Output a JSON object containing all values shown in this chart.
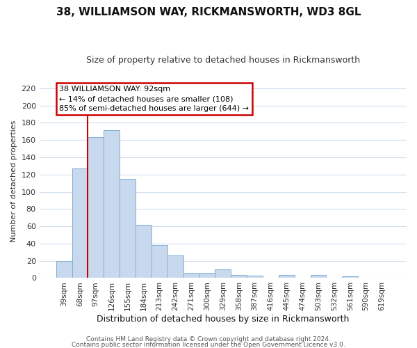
{
  "title": "38, WILLIAMSON WAY, RICKMANSWORTH, WD3 8GL",
  "subtitle": "Size of property relative to detached houses in Rickmansworth",
  "xlabel": "Distribution of detached houses by size in Rickmansworth",
  "ylabel": "Number of detached properties",
  "bar_labels": [
    "39sqm",
    "68sqm",
    "97sqm",
    "126sqm",
    "155sqm",
    "184sqm",
    "213sqm",
    "242sqm",
    "271sqm",
    "300sqm",
    "329sqm",
    "358sqm",
    "387sqm",
    "416sqm",
    "445sqm",
    "474sqm",
    "503sqm",
    "532sqm",
    "561sqm",
    "590sqm",
    "619sqm"
  ],
  "bar_heights": [
    20,
    127,
    163,
    171,
    115,
    62,
    38,
    26,
    6,
    6,
    10,
    4,
    3,
    0,
    4,
    0,
    4,
    0,
    2,
    0,
    0
  ],
  "bar_color": "#c8d9ee",
  "bar_edge_color": "#7eafd4",
  "vline_color": "#cc0000",
  "vline_index": 2,
  "annotation_title": "38 WILLIAMSON WAY: 92sqm",
  "annotation_line1": "← 14% of detached houses are smaller (108)",
  "annotation_line2": "85% of semi-detached houses are larger (644) →",
  "ylim": [
    0,
    225
  ],
  "yticks": [
    0,
    20,
    40,
    60,
    80,
    100,
    120,
    140,
    160,
    180,
    200,
    220
  ],
  "footer1": "Contains HM Land Registry data © Crown copyright and database right 2024.",
  "footer2": "Contains public sector information licensed under the Open Government Licence v3.0.",
  "background_color": "#ffffff",
  "grid_color": "#d0dff0",
  "title_fontsize": 11,
  "subtitle_fontsize": 9,
  "ylabel_fontsize": 8,
  "xlabel_fontsize": 9,
  "footer_fontsize": 6.5
}
